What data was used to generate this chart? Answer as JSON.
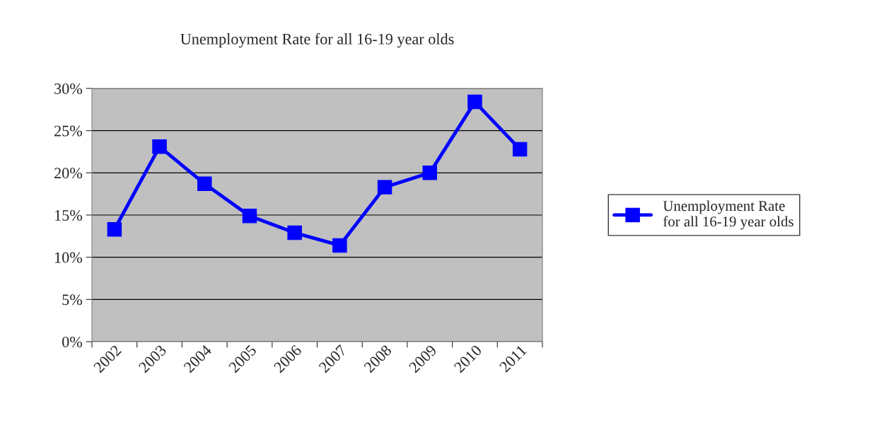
{
  "chart_data": {
    "type": "line",
    "title": "Unemployment Rate for all 16-19 year olds",
    "categories": [
      "2002",
      "2003",
      "2004",
      "2005",
      "2006",
      "2007",
      "2008",
      "2009",
      "2010",
      "2011"
    ],
    "series": [
      {
        "name": "Unemployment Rate\nfor all 16-19 year olds",
        "color": "#0000ff",
        "values": [
          13.3,
          23.1,
          18.7,
          14.9,
          12.9,
          11.4,
          18.3,
          20.0,
          28.4,
          22.8
        ]
      }
    ],
    "ylim": [
      0,
      30
    ],
    "yticks": [
      {
        "value": 0,
        "label": "0%"
      },
      {
        "value": 5,
        "label": "5%"
      },
      {
        "value": 10,
        "label": "10%"
      },
      {
        "value": 15,
        "label": "15%"
      },
      {
        "value": 20,
        "label": "20%"
      },
      {
        "value": 25,
        "label": "25%"
      },
      {
        "value": 30,
        "label": "30%"
      }
    ],
    "grid": "y",
    "legend": "right",
    "marker": "square",
    "line_style": "solid"
  }
}
